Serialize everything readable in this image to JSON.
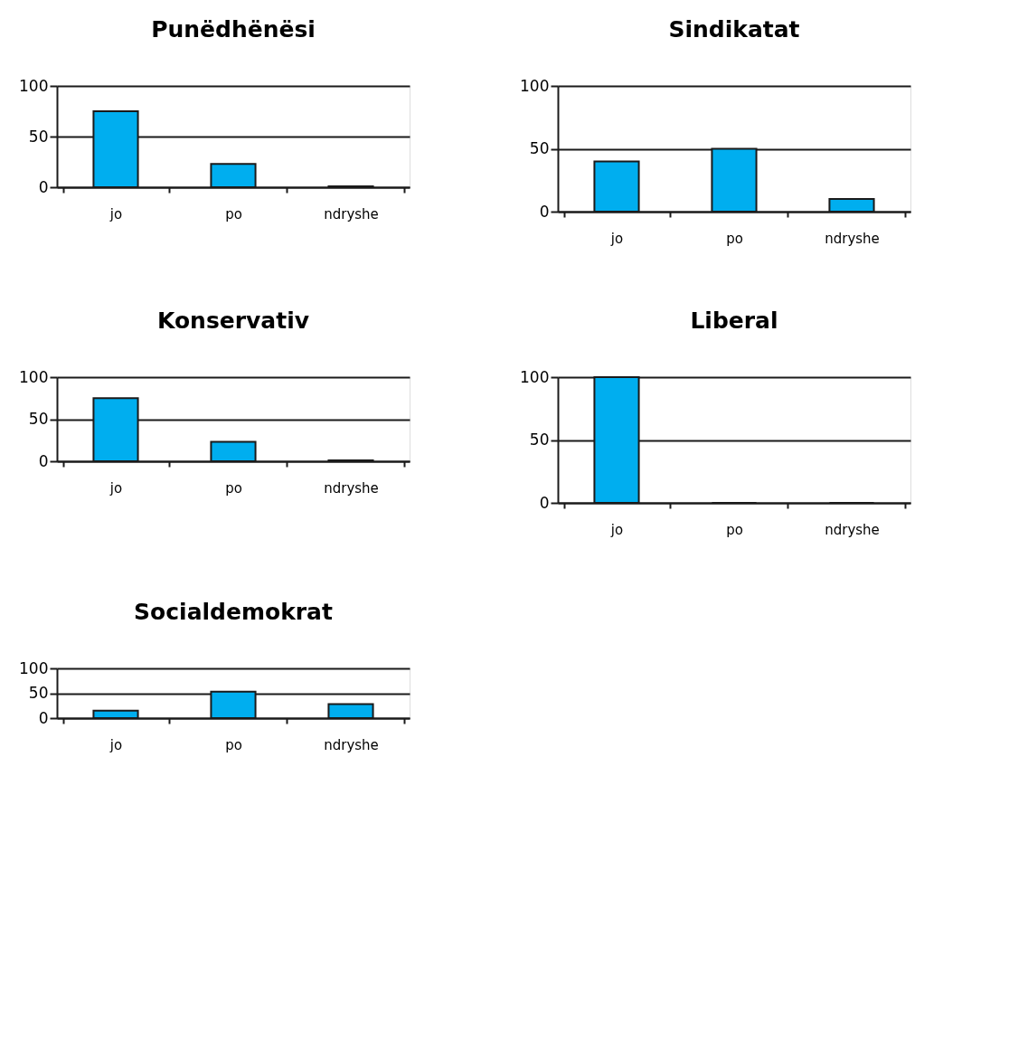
{
  "chart_data": [
    {
      "type": "bar",
      "title": "Punëdhënësi",
      "categories": [
        "jo",
        "po",
        "ndryshe"
      ],
      "values": [
        75,
        23,
        1
      ],
      "color": "#00aeef",
      "ylim": [
        0,
        100
      ],
      "yticks": [
        0,
        50,
        100
      ],
      "grid": "y"
    },
    {
      "type": "bar",
      "title": "Sindikatat",
      "categories": [
        "jo",
        "po",
        "ndryshe"
      ],
      "values": [
        40,
        50,
        10
      ],
      "color": "#00aeef",
      "ylim": [
        0,
        100
      ],
      "yticks": [
        0,
        50,
        100
      ],
      "grid": "y"
    },
    {
      "type": "bar",
      "title": "Konservativ",
      "categories": [
        "jo",
        "po",
        "ndryshe"
      ],
      "values": [
        75,
        23,
        1
      ],
      "color": "#00aeef",
      "ylim": [
        0,
        100
      ],
      "yticks": [
        0,
        50,
        100
      ],
      "grid": "y"
    },
    {
      "type": "bar",
      "title": "Liberal",
      "categories": [
        "jo",
        "po",
        "ndryshe"
      ],
      "values": [
        100,
        0,
        0
      ],
      "color": "#00aeef",
      "ylim": [
        0,
        100
      ],
      "yticks": [
        0,
        50,
        100
      ],
      "grid": "y"
    },
    {
      "type": "bar",
      "title": "Socialdemokrat",
      "categories": [
        "jo",
        "po",
        "ndryshe"
      ],
      "values": [
        15,
        53,
        28
      ],
      "color": "#00aeef",
      "ylim": [
        0,
        100
      ],
      "yticks": [
        0,
        50,
        100
      ],
      "grid": "y"
    }
  ]
}
